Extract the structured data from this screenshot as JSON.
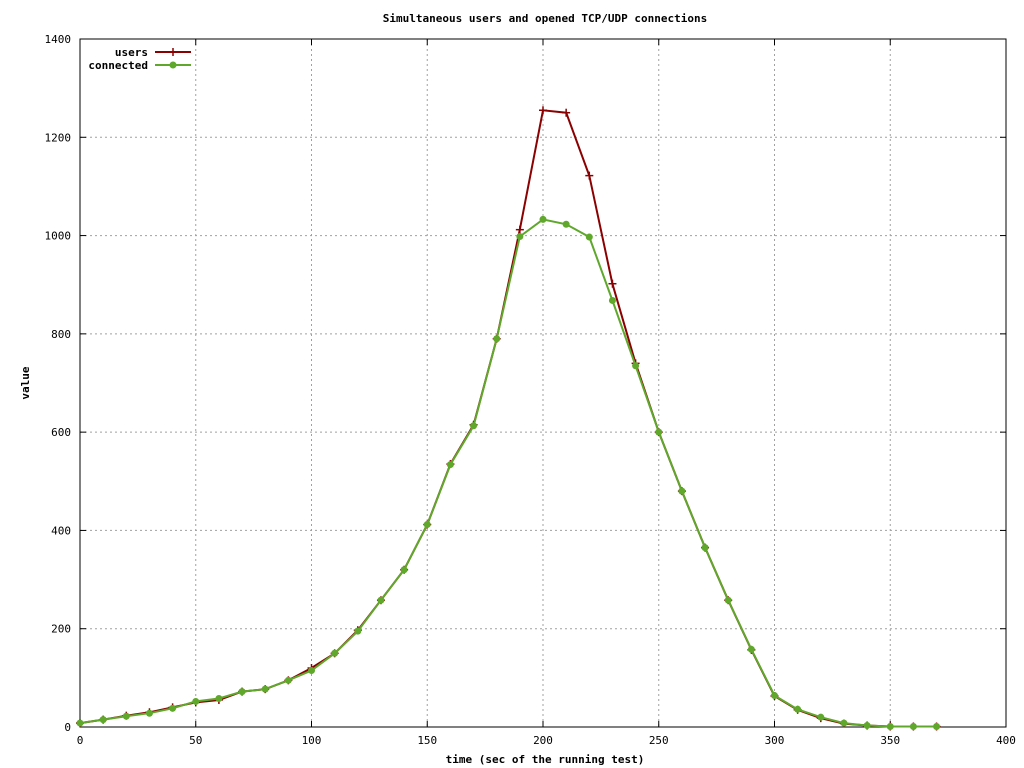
{
  "chart_data": {
    "type": "line",
    "title": "Simultaneous users and opened TCP/UDP connections",
    "xlabel": "time (sec of the running test)",
    "ylabel": "value",
    "xlim": [
      0,
      400
    ],
    "ylim": [
      0,
      1400
    ],
    "xticks": [
      0,
      50,
      100,
      150,
      200,
      250,
      300,
      350,
      400
    ],
    "yticks": [
      0,
      200,
      400,
      600,
      800,
      1000,
      1200,
      1400
    ],
    "grid": true,
    "legend_position": "top-left",
    "series": [
      {
        "name": "users",
        "color": "#8b0000",
        "marker": "plus",
        "x": [
          0,
          10,
          20,
          30,
          40,
          50,
          60,
          70,
          80,
          90,
          100,
          110,
          120,
          130,
          140,
          150,
          160,
          170,
          180,
          190,
          200,
          210,
          220,
          230,
          240,
          250,
          260,
          270,
          280,
          290,
          300,
          310,
          320,
          330,
          340,
          350,
          360,
          370
        ],
        "y": [
          8,
          15,
          23,
          30,
          40,
          50,
          55,
          72,
          77,
          95,
          120,
          150,
          197,
          258,
          320,
          412,
          535,
          615,
          790,
          1012,
          1255,
          1250,
          1122,
          902,
          740,
          600,
          480,
          365,
          258,
          157,
          63,
          35,
          18,
          7,
          3,
          1,
          1,
          1
        ]
      },
      {
        "name": "connected",
        "color": "#5fa82c",
        "marker": "circle",
        "x": [
          0,
          10,
          20,
          30,
          40,
          50,
          60,
          70,
          80,
          90,
          100,
          110,
          120,
          130,
          140,
          150,
          160,
          170,
          180,
          190,
          200,
          210,
          220,
          230,
          240,
          250,
          260,
          270,
          280,
          290,
          300,
          310,
          320,
          330,
          340,
          350,
          360,
          370
        ],
        "y": [
          8,
          15,
          22,
          28,
          38,
          52,
          58,
          72,
          77,
          95,
          115,
          150,
          195,
          258,
          320,
          412,
          534,
          613,
          790,
          998,
          1033,
          1023,
          997,
          868,
          735,
          600,
          480,
          365,
          258,
          158,
          64,
          36,
          20,
          8,
          3,
          1,
          1,
          1
        ]
      }
    ]
  }
}
